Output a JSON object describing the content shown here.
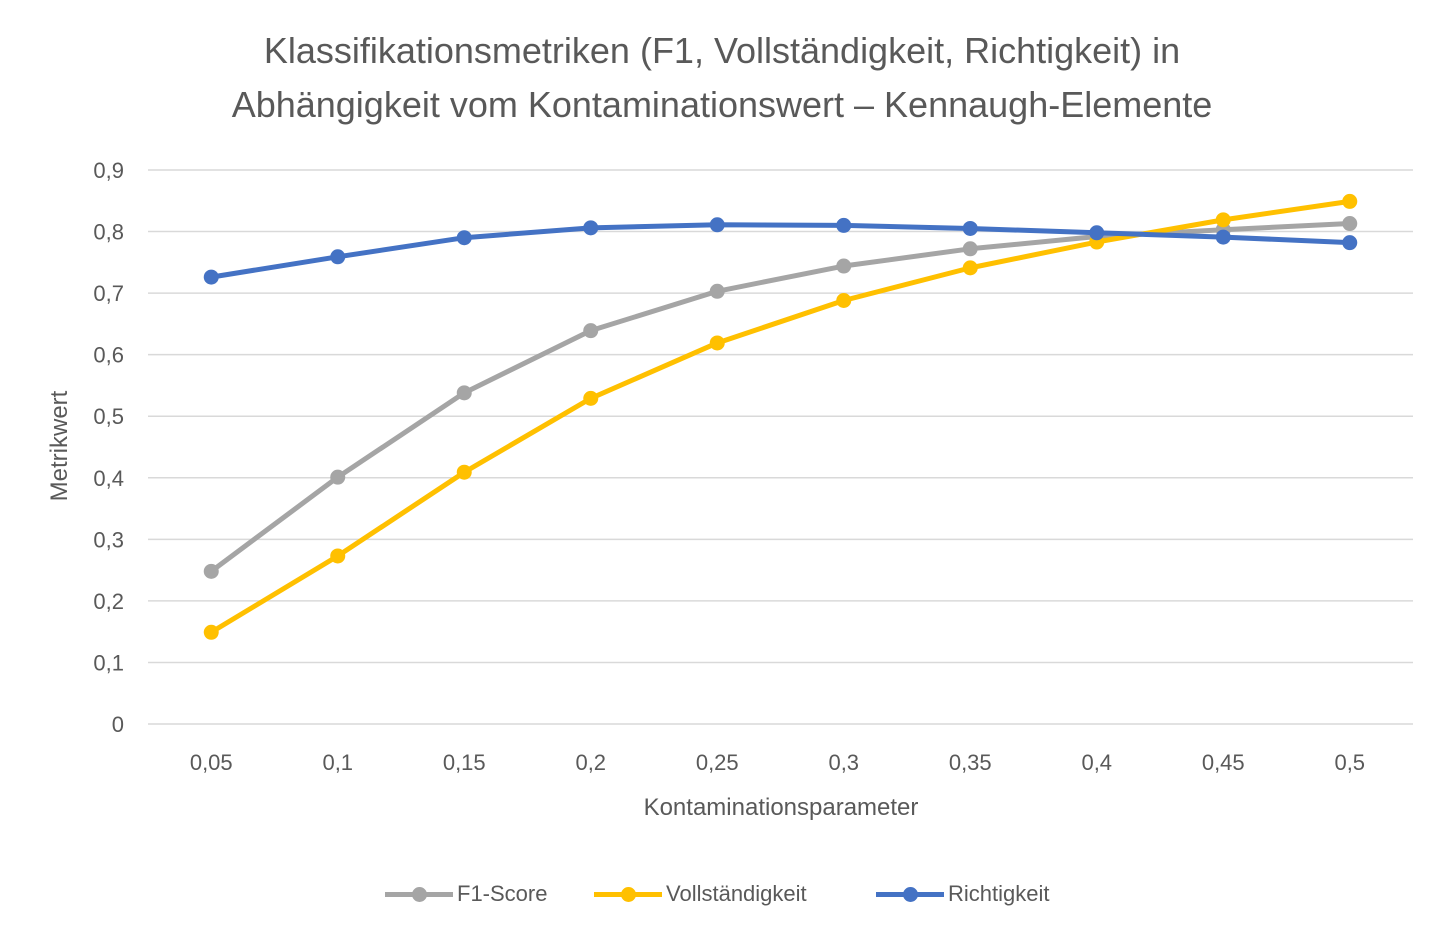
{
  "chart_data": {
    "type": "line",
    "title_lines": [
      "Klassifikationsmetriken (F1, Vollständigkeit, Richtigkeit) in",
      "Abhängigkeit vom Kontaminationswert – Kennaugh-Elemente"
    ],
    "xlabel": "Kontaminationsparameter",
    "ylabel": "Metrikwert",
    "categories": [
      "0,05",
      "0,1",
      "0,15",
      "0,2",
      "0,25",
      "0,3",
      "0,35",
      "0,4",
      "0,45",
      "0,5"
    ],
    "y_ticks": [
      "0",
      "0,1",
      "0,2",
      "0,3",
      "0,4",
      "0,5",
      "0,6",
      "0,7",
      "0,8",
      "0,9"
    ],
    "ylim": [
      0,
      0.9
    ],
    "grid": true,
    "legend_position": "bottom",
    "series": [
      {
        "name": "F1-Score",
        "color": "#A5A5A5",
        "values": [
          0.248,
          0.401,
          0.538,
          0.639,
          0.703,
          0.744,
          0.772,
          0.792,
          0.803,
          0.813
        ]
      },
      {
        "name": "Vollständigkeit",
        "color": "#FFC000",
        "values": [
          0.149,
          0.273,
          0.409,
          0.529,
          0.619,
          0.688,
          0.741,
          0.783,
          0.819,
          0.849
        ]
      },
      {
        "name": "Richtigkeit",
        "color": "#4472C4",
        "values": [
          0.726,
          0.759,
          0.79,
          0.806,
          0.811,
          0.81,
          0.805,
          0.798,
          0.791,
          0.782
        ]
      }
    ]
  }
}
